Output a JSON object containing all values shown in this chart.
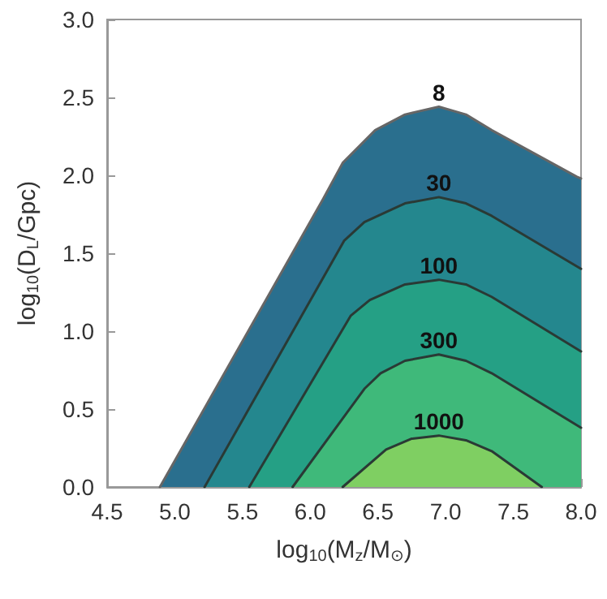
{
  "chart_data": {
    "type": "area",
    "xlabel": "log$_{10}$(M$_{z}$/M$_{⊙}$)",
    "ylabel": "log$_{10}$(D$_{L}$/Gpc)",
    "xlim": [
      4.5,
      8.0
    ],
    "ylim": [
      0.0,
      3.0
    ],
    "xticks": [
      {
        "value": 4.5,
        "label": "4.5"
      },
      {
        "value": 5,
        "label": "5.0"
      },
      {
        "value": 5.5,
        "label": "5.5"
      },
      {
        "value": 6,
        "label": "6.0"
      },
      {
        "value": 6.5,
        "label": "6.5"
      },
      {
        "value": 7,
        "label": "7.0"
      },
      {
        "value": 7.5,
        "label": "7.5"
      },
      {
        "value": 8,
        "label": "8.0"
      }
    ],
    "yticks": [
      {
        "value": 0,
        "label": "0.0"
      },
      {
        "value": 0.5,
        "label": "0.5"
      },
      {
        "value": 1,
        "label": "1.0"
      },
      {
        "value": 1.5,
        "label": "1.5"
      },
      {
        "value": 2,
        "label": "2.0"
      },
      {
        "value": 2.5,
        "label": "2.5"
      },
      {
        "value": 3,
        "label": "3.0"
      }
    ],
    "grid": false,
    "marker": "none",
    "line_style": "solid",
    "series": [
      {
        "name": "8",
        "color": "#2a6f8e",
        "x": [
          4.89,
          6.09,
          6.24,
          6.48,
          6.7,
          6.95,
          7.15,
          7.34,
          7.97,
          8.0
        ],
        "values": [
          0,
          1.84,
          2.08,
          2.29,
          2.39,
          2.44,
          2.39,
          2.29,
          1.99,
          1.98
        ]
      },
      {
        "name": "30",
        "color": "#24878e",
        "x": [
          5.22,
          6.25,
          6.4,
          6.7,
          6.95,
          7.15,
          7.34,
          8.0
        ],
        "values": [
          0,
          1.58,
          1.7,
          1.82,
          1.86,
          1.82,
          1.74,
          1.4
        ]
      },
      {
        "name": "100",
        "color": "#25a085",
        "x": [
          5.55,
          6.3,
          6.44,
          6.7,
          6.95,
          7.15,
          7.34,
          8.0
        ],
        "values": [
          0,
          1.1,
          1.2,
          1.3,
          1.33,
          1.3,
          1.22,
          0.87
        ]
      },
      {
        "name": "300",
        "color": "#3fb97a",
        "x": [
          5.87,
          6.4,
          6.52,
          6.7,
          6.95,
          7.15,
          7.34,
          8.0
        ],
        "values": [
          0,
          0.63,
          0.73,
          0.81,
          0.85,
          0.81,
          0.73,
          0.38
        ]
      },
      {
        "name": "1000",
        "color": "#7fcf62",
        "x": [
          6.24,
          6.56,
          6.75,
          6.95,
          7.15,
          7.34,
          7.71
        ],
        "values": [
          0,
          0.24,
          0.31,
          0.33,
          0.3,
          0.23,
          0
        ]
      }
    ]
  }
}
